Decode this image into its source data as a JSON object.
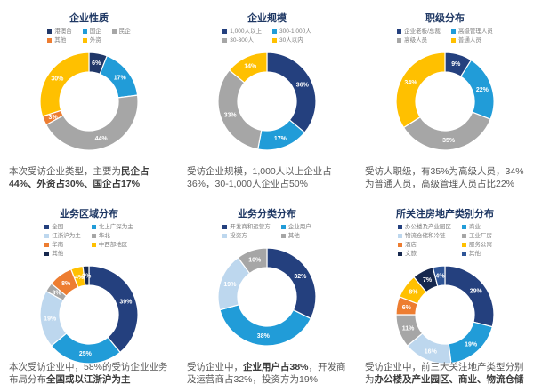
{
  "page": {
    "background": "#FFFFFF",
    "text_color": "#595959",
    "title_color": "#1F3864"
  },
  "chart_data": [
    {
      "type": "donut",
      "title": "企业性质",
      "legend_columns": 3,
      "series": [
        {
          "label": "港澳台",
          "value": 6,
          "color": "#203768"
        },
        {
          "label": "国企",
          "value": 17,
          "color": "#219CD8"
        },
        {
          "label": "民企",
          "value": 44,
          "color": "#A6A6A6"
        },
        {
          "label": "其他",
          "value": 3,
          "color": "#ED7D31"
        },
        {
          "label": "外资",
          "value": 30,
          "color": "#FFC000"
        }
      ],
      "caption": [
        {
          "text": "本次受访企业类型，主要为",
          "bold": false
        },
        {
          "text": "民企占44%、外资占30%、国企占17%",
          "bold": true
        }
      ]
    },
    {
      "type": "donut",
      "title": "企业规模",
      "legend_columns": 2,
      "series": [
        {
          "label": "1,000人以上",
          "value": 36,
          "color": "#24407E"
        },
        {
          "label": "300-1,000人",
          "value": 17,
          "color": "#219CD8"
        },
        {
          "label": "30-300人",
          "value": 33,
          "color": "#A6A6A6"
        },
        {
          "label": "30人以内",
          "value": 14,
          "color": "#FFC000"
        }
      ],
      "caption": [
        {
          "text": "受访企业规模，1,000人以上企业占36%，30-1,000人企业占50%",
          "bold": false
        }
      ]
    },
    {
      "type": "donut",
      "title": "职级分布",
      "legend_columns": 2,
      "series": [
        {
          "label": "企业老板/总裁",
          "value": 9,
          "color": "#24407E"
        },
        {
          "label": "高级管理人员",
          "value": 22,
          "color": "#219CD8"
        },
        {
          "label": "高级人员",
          "value": 35,
          "color": "#A6A6A6"
        },
        {
          "label": "普通人员",
          "value": 34,
          "color": "#FFC000"
        }
      ],
      "caption": [
        {
          "text": "受访人职级，有35%为高级人员，34%为普通人员，高级管理人员占比22%",
          "bold": false
        }
      ]
    },
    {
      "type": "donut",
      "title": "业务区域分布",
      "legend_columns": 2,
      "series": [
        {
          "label": "全国",
          "value": 39,
          "color": "#24407E"
        },
        {
          "label": "北上广深为主",
          "value": 25,
          "color": "#219CD8"
        },
        {
          "label": "江浙沪为主",
          "value": 19,
          "color": "#BDD7EE"
        },
        {
          "label": "华北",
          "value": 3,
          "color": "#A6A6A6"
        },
        {
          "label": "华南",
          "value": 8,
          "color": "#ED7D31"
        },
        {
          "label": "中西部地区",
          "value": 4,
          "color": "#FFC000"
        },
        {
          "label": "其他",
          "value": 2,
          "color": "#16284E"
        }
      ],
      "caption": [
        {
          "text": "本次受访企业中，58%的受访企业业务布局分布",
          "bold": false
        },
        {
          "text": "全国或以江浙沪为主",
          "bold": true
        }
      ]
    },
    {
      "type": "donut",
      "title": "业务分类分布",
      "legend_columns": 2,
      "series": [
        {
          "label": "开发商和运营方",
          "value": 32,
          "color": "#24407E"
        },
        {
          "label": "企业用户",
          "value": 38,
          "color": "#219CD8"
        },
        {
          "label": "投资方",
          "value": 19,
          "color": "#BDD7EE"
        },
        {
          "label": "其他",
          "value": 10,
          "color": "#A6A6A6"
        }
      ],
      "caption": [
        {
          "text": "受访企业中，",
          "bold": false
        },
        {
          "text": "企业用户占38%",
          "bold": true
        },
        {
          "text": "，开发商及运营商占32%，投资方为19%",
          "bold": false
        }
      ]
    },
    {
      "type": "donut",
      "title": "所关注房地产类别分布",
      "legend_columns": 2,
      "series": [
        {
          "label": "办公楼及产业园区",
          "value": 29,
          "color": "#24407E"
        },
        {
          "label": "商业",
          "value": 19,
          "color": "#219CD8"
        },
        {
          "label": "物流仓储和冷链",
          "value": 16,
          "color": "#BDD7EE"
        },
        {
          "label": "工业厂房",
          "value": 11,
          "color": "#A6A6A6"
        },
        {
          "label": "酒店",
          "value": 6,
          "color": "#ED7D31"
        },
        {
          "label": "服务公寓",
          "value": 8,
          "color": "#FFC000"
        },
        {
          "label": "文旅",
          "value": 7,
          "color": "#16284E"
        },
        {
          "label": "其他",
          "value": 4,
          "color": "#2F5597"
        }
      ],
      "caption": [
        {
          "text": "受访企业中，前三大关注地产类型分别为",
          "bold": false
        },
        {
          "text": "办公楼及产业园区、商业、物流仓储",
          "bold": true
        }
      ]
    }
  ]
}
